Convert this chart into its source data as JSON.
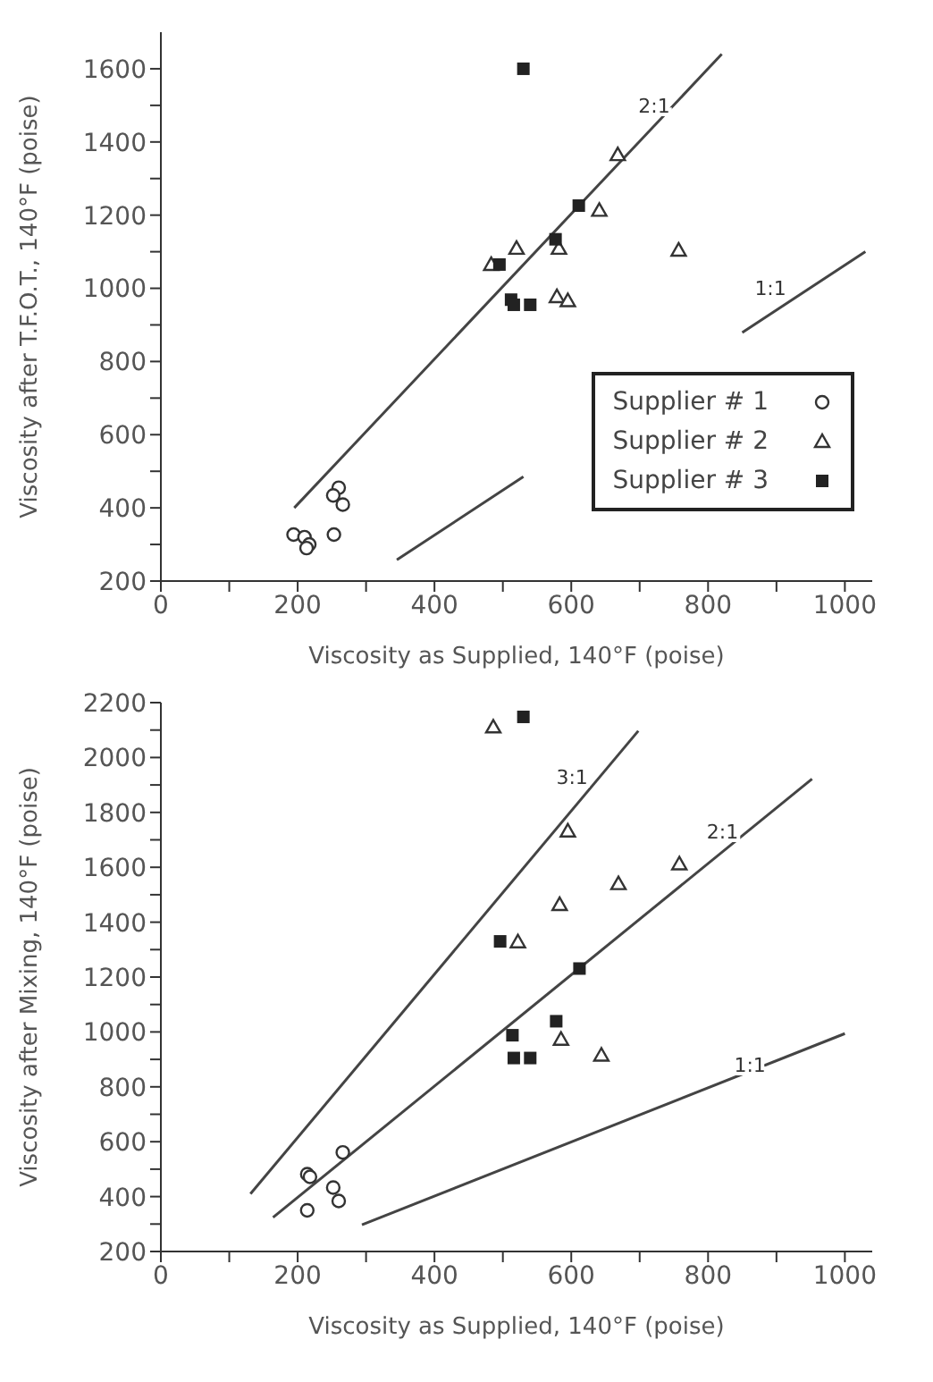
{
  "chart_data": [
    {
      "type": "scatter",
      "xlabel": "Viscosity as Supplied, 140°F (poise)",
      "ylabel": "Viscosity after T.F.O.T., 140°F (poise)",
      "xlim": [
        0,
        1040
      ],
      "ylim": [
        200,
        1700
      ],
      "xticks": [
        0,
        {
          "value": 100,
          "label": null
        },
        200,
        {
          "value": 300,
          "label": null
        },
        400,
        {
          "value": 500,
          "label": null
        },
        600,
        {
          "value": 700,
          "label": null
        },
        800,
        {
          "value": 900,
          "label": null
        },
        1000
      ],
      "yticks": [
        200,
        {
          "value": 300,
          "label": null
        },
        400,
        {
          "value": 500,
          "label": null
        },
        600,
        {
          "value": 700,
          "label": null
        },
        800,
        {
          "value": 900,
          "label": null
        },
        1000,
        {
          "value": 1100,
          "label": null
        },
        1200,
        {
          "value": 1300,
          "label": null
        },
        1400,
        {
          "value": 1500,
          "label": null
        },
        1600
      ],
      "grid": false,
      "legend": "bottom right",
      "series": [
        {
          "name": "Supplier # 1",
          "color": "#333333",
          "marker": "circle",
          "x": [
            194,
            210,
            217,
            213,
            253,
            260,
            252,
            266
          ],
          "values": [
            327,
            320,
            300,
            290,
            327,
            455,
            434,
            409
          ]
        },
        {
          "name": "Supplier # 2",
          "color": "#333333",
          "marker": "triangle",
          "x": [
            668,
            641,
            520,
            483,
            582,
            579,
            595,
            757
          ],
          "values": [
            1365,
            1213,
            1109,
            1065,
            1109,
            977,
            966,
            1104
          ]
        },
        {
          "name": "Supplier # 3",
          "color": "#222222",
          "marker": "square",
          "x": [
            530,
            611,
            577,
            495,
            512,
            516,
            540
          ],
          "values": [
            1600,
            1226,
            1134,
            1065,
            969,
            955,
            955
          ]
        },
        {
          "type": "line",
          "color": "#444444",
          "marker": "none",
          "x": [
            195,
            820
          ],
          "values": [
            400,
            1640
          ]
        },
        {
          "type": "line",
          "color": "#444444",
          "marker": "none",
          "x": [
            345,
            530,
            560,
            850,
            1030
          ],
          "values": [
            258,
            485,
            null,
            879,
            1100
          ]
        }
      ],
      "annotations": [
        {
          "text": "2:1",
          "x": 760,
          "y": 1500
        },
        {
          "text": "1:1",
          "x": 930,
          "y": 1000
        }
      ]
    },
    {
      "type": "scatter",
      "xlabel": "Viscosity as Supplied, 140°F (poise)",
      "ylabel": "Viscosity after Mixing, 140°F (poise)",
      "xlim": [
        0,
        1040
      ],
      "ylim": [
        200,
        2200
      ],
      "xticks": [
        0,
        {
          "value": 100,
          "label": null
        },
        200,
        {
          "value": 300,
          "label": null
        },
        400,
        {
          "value": 500,
          "label": null
        },
        600,
        {
          "value": 700,
          "label": null
        },
        800,
        {
          "value": 900,
          "label": null
        },
        1000
      ],
      "yticks": [
        200,
        {
          "value": 300,
          "label": null
        },
        400,
        {
          "value": 500,
          "label": null
        },
        600,
        {
          "value": 700,
          "label": null
        },
        800,
        {
          "value": 900,
          "label": null
        },
        1000,
        {
          "value": 1100,
          "label": null
        },
        1200,
        {
          "value": 1300,
          "label": null
        },
        1400,
        {
          "value": 1500,
          "label": null
        },
        1600,
        {
          "value": 1700,
          "label": null
        },
        1800,
        {
          "value": 1900,
          "label": null
        },
        2000,
        {
          "value": 2100,
          "label": null
        },
        2200
      ],
      "grid": false,
      "series": [
        {
          "color": "#333333",
          "marker": "circle",
          "x": [
            214,
            218,
            214,
            252,
            260,
            266
          ],
          "values": [
            482,
            472,
            350,
            433,
            384,
            561
          ]
        },
        {
          "color": "#333333",
          "marker": "triangle",
          "x": [
            486,
            595,
            583,
            669,
            758,
            522,
            585,
            644
          ],
          "values": [
            2111,
            1732,
            1464,
            1540,
            1612,
            1328,
            973,
            915
          ]
        },
        {
          "color": "#222222",
          "marker": "square",
          "x": [
            530,
            496,
            612,
            578,
            514,
            516,
            540
          ],
          "values": [
            2148,
            1330,
            1231,
            1039,
            988,
            905,
            905
          ]
        },
        {
          "type": "line",
          "color": "#444444",
          "marker": "none",
          "x": [
            131,
            698
          ],
          "values": [
            410,
            2097
          ]
        },
        {
          "type": "line",
          "color": "#444444",
          "marker": "none",
          "x": [
            164,
            952
          ],
          "values": [
            324,
            1922
          ]
        },
        {
          "type": "line",
          "color": "#444444",
          "marker": "none",
          "x": [
            294,
            1000
          ],
          "values": [
            297,
            994
          ]
        }
      ],
      "annotations": [
        {
          "text": "3:1",
          "x": 640,
          "y": 1930
        },
        {
          "text": "2:1",
          "x": 860,
          "y": 1730
        },
        {
          "text": "1:1",
          "x": 900,
          "y": 880
        }
      ]
    }
  ]
}
